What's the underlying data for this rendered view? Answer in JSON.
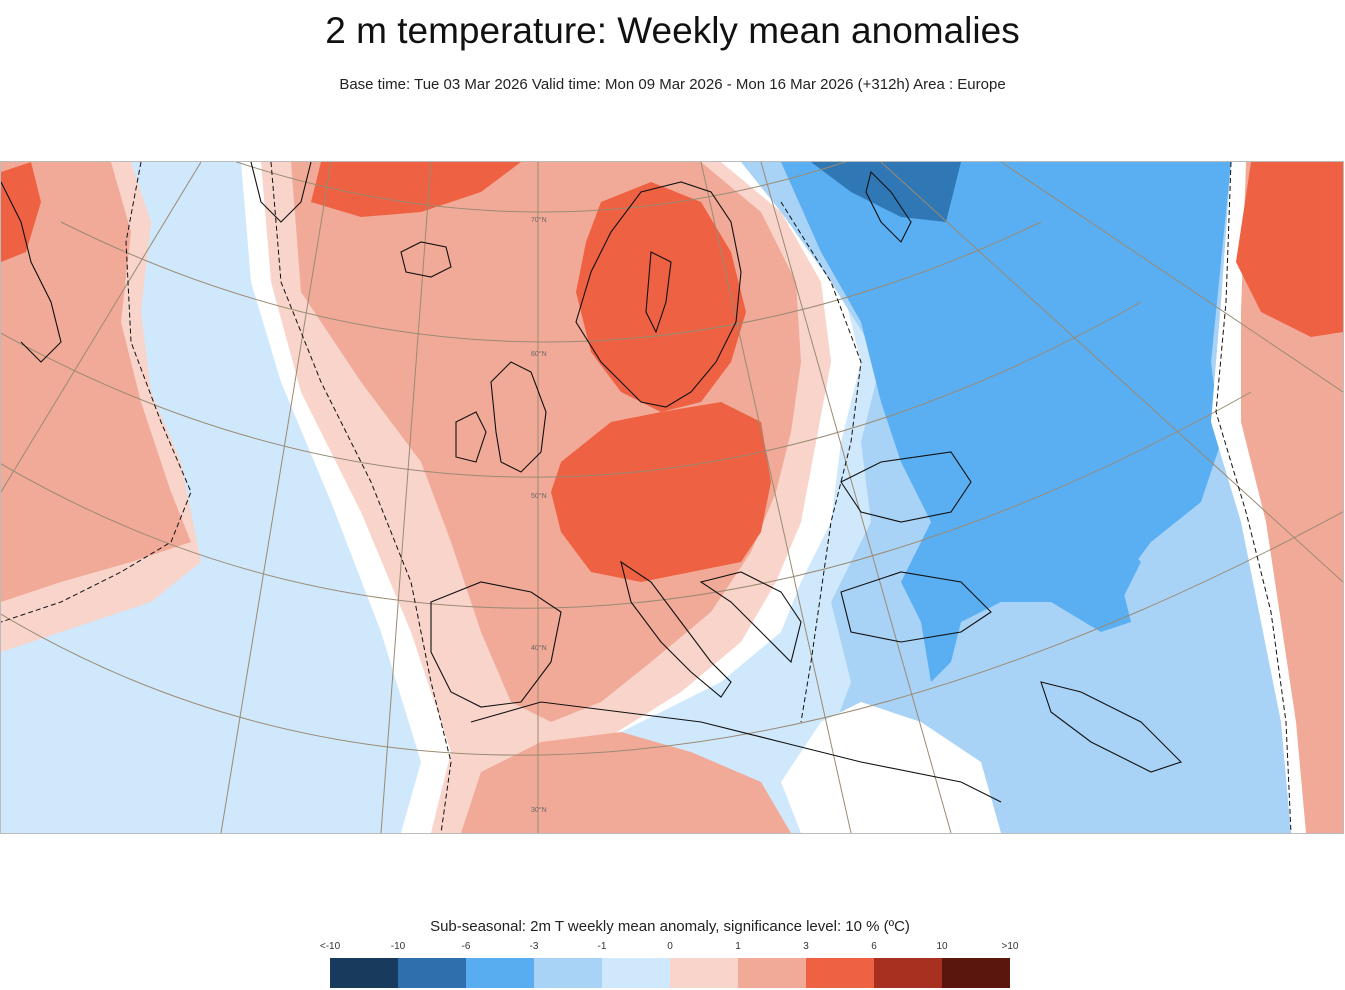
{
  "header": {
    "title": "2 m temperature: Weekly mean anomalies",
    "subtitle": "Base time: Tue 03 Mar 2026 Valid time: Mon 09 Mar 2026 - Mon 16 Mar 2026 (+312h) Area : Europe"
  },
  "map": {
    "area": "Europe",
    "latitude_labels": [
      "70°N",
      "60°N",
      "50°N",
      "40°N",
      "30°N"
    ],
    "colors": {
      "strong_warm": "#ee6142",
      "warm": "#f2aa98",
      "slight_warm": "#f8d4cb",
      "neutral": "#ffffff",
      "slight_cool": "#cfe8fb",
      "cool": "#a9d3f6",
      "moderate_cool": "#5aaef2",
      "strong_cool": "#2f78b5"
    }
  },
  "legend": {
    "title": "Sub-seasonal: 2m T weekly mean anomaly, significance level: 10 % (ºC)",
    "ticks": [
      "<-10",
      "-10",
      "-6",
      "-3",
      "-1",
      "0",
      "1",
      "3",
      "6",
      "10",
      ">10"
    ],
    "colors": [
      "#183a5c",
      "#2f6fae",
      "#58adf1",
      "#a9d3f6",
      "#cfe8fb",
      "#f8d4cb",
      "#f2aa98",
      "#ee6142",
      "#a83020",
      "#5a150c"
    ]
  }
}
